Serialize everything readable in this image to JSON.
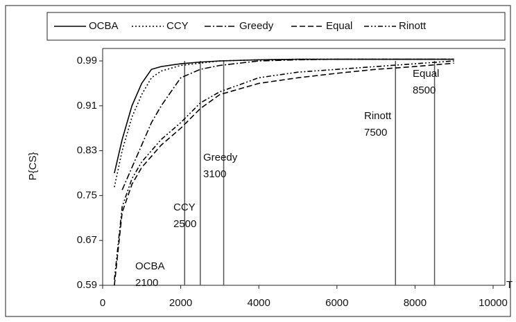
{
  "chart_data": {
    "type": "line",
    "x": [
      300,
      500,
      750,
      1000,
      1250,
      1500,
      2000,
      2500,
      3000,
      4000,
      5000,
      6000,
      7000,
      8000,
      9000
    ],
    "series": [
      {
        "name": "OCBA",
        "color": "#000000",
        "dash": "solid",
        "values": [
          0.79,
          0.85,
          0.91,
          0.95,
          0.975,
          0.98,
          0.985,
          0.988,
          0.99,
          0.992,
          0.993,
          0.993,
          0.993,
          0.993,
          0.993
        ]
      },
      {
        "name": "CCY",
        "color": "#000000",
        "dash": "dotted",
        "values": [
          0.765,
          0.83,
          0.89,
          0.93,
          0.96,
          0.972,
          0.982,
          0.986,
          0.99,
          0.992,
          0.993,
          0.993,
          0.993,
          0.993,
          0.993
        ]
      },
      {
        "name": "Greedy",
        "color": "#000000",
        "dash": "dashdot",
        "values": [
          null,
          0.76,
          0.8,
          0.84,
          0.88,
          0.91,
          0.96,
          0.975,
          0.982,
          0.99,
          0.992,
          0.993,
          0.993,
          0.993,
          0.993
        ]
      },
      {
        "name": "Equal",
        "color": "#000000",
        "dash": "dashed",
        "values": [
          0.59,
          0.72,
          0.77,
          0.8,
          0.82,
          0.84,
          0.87,
          0.905,
          0.93,
          0.95,
          0.96,
          0.968,
          0.975,
          0.98,
          0.986
        ]
      },
      {
        "name": "Rinott",
        "color": "#000000",
        "dash": "dashdotdot",
        "values": [
          0.6,
          0.73,
          0.78,
          0.81,
          0.83,
          0.85,
          0.88,
          0.915,
          0.935,
          0.96,
          0.97,
          0.975,
          0.98,
          0.985,
          0.99
        ]
      }
    ],
    "annotations": [
      {
        "label": "OCBA",
        "value": 2100
      },
      {
        "label": "CCY",
        "value": 2500
      },
      {
        "label": "Greedy",
        "value": 3100
      },
      {
        "label": "Rinott",
        "value": 7500
      },
      {
        "label": "Equal",
        "value": 8500
      }
    ],
    "xlabel": "T",
    "ylabel": "P{CS}",
    "xlim": [
      0,
      10000
    ],
    "xticks": [
      0,
      2000,
      4000,
      6000,
      8000,
      10000
    ],
    "ylim": [
      0.59,
      0.99
    ],
    "yticks": [
      0.59,
      0.67,
      0.75,
      0.83,
      0.91,
      0.99
    ]
  }
}
